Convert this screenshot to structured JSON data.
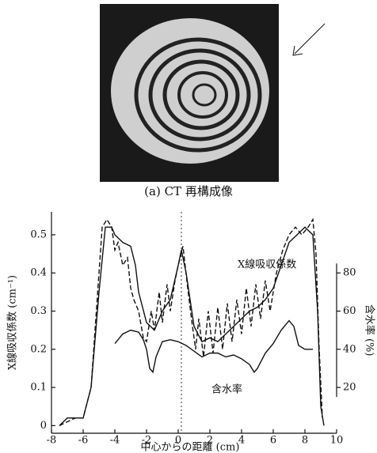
{
  "caption": "(a) CT 再構成像",
  "chart_data": {
    "type": "line",
    "xlabel": "中心からの距離 (cm)",
    "ylabel": "X線吸収係数 (cm⁻¹)",
    "y2label": "含水率 (%)",
    "xlim": [
      -8,
      10
    ],
    "xticks": [
      -8,
      -6,
      -4,
      -2,
      0,
      2,
      4,
      6,
      8,
      10
    ],
    "ylim": [
      -0.02,
      0.56
    ],
    "yticks": [
      0,
      0.1,
      0.2,
      0.3,
      0.4,
      0.5
    ],
    "y2lim": [
      -4,
      112
    ],
    "y2ticks": [
      20,
      40,
      60,
      80
    ],
    "series": [
      {
        "name": "X線吸収係数",
        "color": "#111111",
        "style": "solid",
        "x": [
          -7.5,
          -7,
          -6,
          -5.5,
          -5,
          -4.6,
          -4.2,
          -4,
          -3.5,
          -3,
          -2.7,
          -2.5,
          -2,
          -1.5,
          -1,
          -0.5,
          0,
          0.2,
          0.5,
          1,
          1.5,
          2,
          2.5,
          3,
          3.5,
          4,
          4.5,
          5,
          5.5,
          6,
          6.5,
          7,
          7.5,
          8,
          8.5,
          8.8,
          9,
          9.2
        ],
        "values": [
          0,
          0.02,
          0.02,
          0.1,
          0.35,
          0.52,
          0.52,
          0.5,
          0.48,
          0.47,
          0.42,
          0.35,
          0.27,
          0.25,
          0.3,
          0.33,
          0.42,
          0.46,
          0.4,
          0.26,
          0.22,
          0.23,
          0.22,
          0.24,
          0.26,
          0.28,
          0.3,
          0.31,
          0.33,
          0.36,
          0.42,
          0.48,
          0.5,
          0.52,
          0.5,
          0.3,
          0.05,
          0
        ]
      },
      {
        "color": "#111111",
        "style": "dashed",
        "x": [
          -7.5,
          -7,
          -6.5,
          -6,
          -5.5,
          -5,
          -4.8,
          -4.5,
          -4.2,
          -4,
          -3.8,
          -3.5,
          -3.2,
          -3,
          -2.8,
          -2.5,
          -2.2,
          -2,
          -1.7,
          -1.5,
          -1.2,
          -1,
          -0.7,
          -0.5,
          -0.2,
          0,
          0.3,
          0.6,
          0.9,
          1.1,
          1.3,
          1.6,
          1.9,
          2.2,
          2.5,
          2.8,
          3.1,
          3.4,
          3.7,
          4,
          4.3,
          4.6,
          4.9,
          5.2,
          5.5,
          5.8,
          6.2,
          6.6,
          7,
          7.4,
          7.8,
          8.2,
          8.5,
          8.7,
          8.9,
          9.1
        ],
        "values": [
          0,
          0.01,
          0.02,
          0.02,
          0.1,
          0.4,
          0.52,
          0.54,
          0.52,
          0.46,
          0.48,
          0.42,
          0.44,
          0.36,
          0.33,
          0.3,
          0.23,
          0.22,
          0.3,
          0.25,
          0.35,
          0.27,
          0.37,
          0.3,
          0.38,
          0.42,
          0.47,
          0.36,
          0.26,
          0.2,
          0.28,
          0.18,
          0.3,
          0.19,
          0.31,
          0.2,
          0.32,
          0.22,
          0.33,
          0.24,
          0.36,
          0.26,
          0.37,
          0.28,
          0.38,
          0.3,
          0.4,
          0.46,
          0.5,
          0.52,
          0.5,
          0.52,
          0.54,
          0.45,
          0.2,
          0.02
        ]
      },
      {
        "name": "含水率",
        "color": "#111111",
        "style": "solid",
        "axis": "y2",
        "x": [
          -4,
          -3.5,
          -3,
          -2.5,
          -2.2,
          -2,
          -1.8,
          -1.6,
          -1.4,
          -1,
          -0.5,
          0,
          0.5,
          1,
          1.5,
          2,
          2.5,
          3,
          3.5,
          4,
          4.5,
          4.8,
          5,
          5.5,
          6,
          6.5,
          7,
          7.3,
          7.6,
          8,
          8.5
        ],
        "values": [
          43,
          48,
          50,
          49,
          45,
          40,
          30,
          28,
          36,
          44,
          45,
          44,
          42,
          39,
          36,
          38,
          38,
          36,
          37,
          35,
          32,
          28,
          30,
          38,
          43,
          50,
          55,
          52,
          42,
          40,
          40
        ]
      }
    ]
  }
}
